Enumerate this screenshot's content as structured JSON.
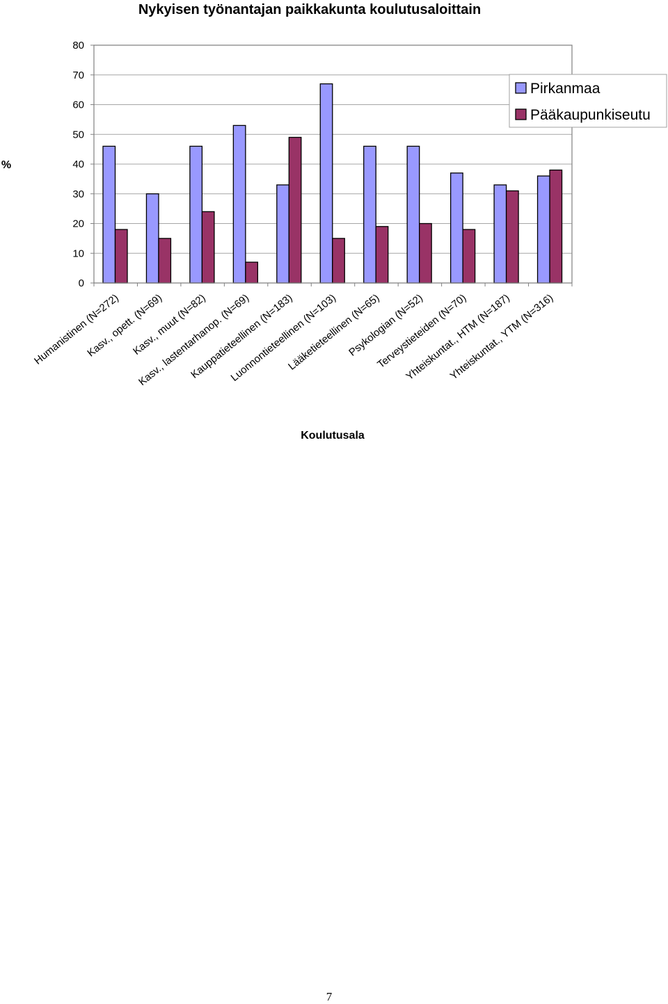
{
  "chart_data": {
    "type": "bar",
    "title": "Nykyisen työnantajan paikkakunta koulutusaloittain",
    "xlabel": "Koulutusala",
    "ylabel": "%",
    "ylim": [
      0,
      80
    ],
    "yticks": [
      0,
      10,
      20,
      30,
      40,
      50,
      60,
      70,
      80
    ],
    "grid": true,
    "legend_position": "top-right",
    "categories": [
      "Humanistinen (N=272)",
      "Kasv., opett. (N=69)",
      "Kasv., muut (N=82)",
      "Kasv., lastentarhanop. (N=69)",
      "Kauppatieteellinen (N=183)",
      "Luonnontieteellinen (N=103)",
      "Lääketieteellinen (N=65)",
      "Psykologian (N=52)",
      "Terveystieteiden (N=70)",
      "Yhteiskuntat., HTM (N=187)",
      "Yhteiskuntat., YTM (N=316)"
    ],
    "series": [
      {
        "name": "Pirkanmaa",
        "color": "#9999ff",
        "values": [
          46,
          30,
          46,
          53,
          33,
          67,
          46,
          46,
          37,
          33,
          36
        ]
      },
      {
        "name": "Pääkaupunkiseutu",
        "color": "#993366",
        "values": [
          18,
          15,
          24,
          7,
          49,
          15,
          19,
          20,
          18,
          31,
          38
        ]
      }
    ]
  },
  "page": {
    "number": "7"
  }
}
